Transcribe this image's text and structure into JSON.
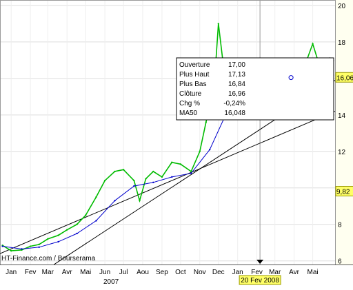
{
  "chart_data": {
    "type": "line",
    "x_range": [
      "2006-12-28",
      "2008-06-20"
    ],
    "ylim": [
      5.8,
      20.3
    ],
    "y_ticks": [
      6,
      8,
      10,
      12,
      14,
      16,
      18,
      20
    ],
    "x_month_labels": [
      {
        "date": "2007-01-15",
        "label": "Jan"
      },
      {
        "date": "2007-02-15",
        "label": "Fev"
      },
      {
        "date": "2007-03-15",
        "label": "Mar"
      },
      {
        "date": "2007-04-15",
        "label": "Avr"
      },
      {
        "date": "2007-05-15",
        "label": "Mai"
      },
      {
        "date": "2007-06-15",
        "label": "Jun"
      },
      {
        "date": "2007-07-15",
        "label": "Jul"
      },
      {
        "date": "2007-08-15",
        "label": "Aou"
      },
      {
        "date": "2007-09-15",
        "label": "Sep"
      },
      {
        "date": "2007-10-15",
        "label": "Oct"
      },
      {
        "date": "2007-11-15",
        "label": "Nov"
      },
      {
        "date": "2007-12-15",
        "label": "Dec"
      },
      {
        "date": "2008-01-15",
        "label": "Jan"
      },
      {
        "date": "2008-02-15",
        "label": "Fev"
      },
      {
        "date": "2008-03-15",
        "label": "Mar"
      },
      {
        "date": "2008-04-15",
        "label": "Avr"
      },
      {
        "date": "2008-05-15",
        "label": "Mai"
      }
    ],
    "year_labels": [
      {
        "date": "2007-06-25",
        "label": "2007"
      },
      {
        "date": "2008-03-01",
        "label": "8"
      }
    ],
    "series": [
      {
        "name": "Prix",
        "color": "#00bb00",
        "points": [
          [
            "2007-01-01",
            6.85
          ],
          [
            "2007-01-15",
            6.55
          ],
          [
            "2007-02-01",
            6.6
          ],
          [
            "2007-02-15",
            6.8
          ],
          [
            "2007-03-01",
            6.9
          ],
          [
            "2007-03-15",
            7.2
          ],
          [
            "2007-04-01",
            7.4
          ],
          [
            "2007-04-15",
            7.7
          ],
          [
            "2007-05-01",
            8.0
          ],
          [
            "2007-05-15",
            8.5
          ],
          [
            "2007-06-01",
            9.5
          ],
          [
            "2007-06-15",
            10.4
          ],
          [
            "2007-07-01",
            10.9
          ],
          [
            "2007-07-15",
            11.0
          ],
          [
            "2007-08-01",
            10.4
          ],
          [
            "2007-08-10",
            9.3
          ],
          [
            "2007-08-20",
            10.5
          ],
          [
            "2007-09-01",
            10.9
          ],
          [
            "2007-09-15",
            10.6
          ],
          [
            "2007-10-01",
            11.4
          ],
          [
            "2007-10-15",
            11.3
          ],
          [
            "2007-11-01",
            10.9
          ],
          [
            "2007-11-15",
            12.0
          ],
          [
            "2007-11-25",
            13.6
          ],
          [
            "2007-12-01",
            14.6
          ],
          [
            "2007-12-10",
            16.5
          ],
          [
            "2007-12-15",
            19.0
          ],
          [
            "2007-12-22",
            17.0
          ],
          [
            "2008-01-01",
            15.5
          ],
          [
            "2008-01-10",
            14.2
          ],
          [
            "2008-01-20",
            16.0
          ],
          [
            "2008-02-01",
            17.0
          ],
          [
            "2008-02-10",
            16.9
          ],
          [
            "2008-02-20",
            16.96
          ],
          [
            "2008-03-01",
            15.2
          ],
          [
            "2008-03-12",
            14.0
          ],
          [
            "2008-03-22",
            15.6
          ],
          [
            "2008-04-01",
            15.9
          ],
          [
            "2008-04-15",
            16.9
          ],
          [
            "2008-05-01",
            16.6
          ],
          [
            "2008-05-15",
            17.9
          ],
          [
            "2008-05-25",
            16.8
          ],
          [
            "2008-06-05",
            16.3
          ],
          [
            "2008-06-15",
            16.06
          ]
        ]
      },
      {
        "name": "MA50",
        "color": "#0000cc",
        "points": [
          [
            "2007-01-01",
            6.8
          ],
          [
            "2007-02-01",
            6.65
          ],
          [
            "2007-03-01",
            6.75
          ],
          [
            "2007-04-01",
            7.05
          ],
          [
            "2007-05-01",
            7.5
          ],
          [
            "2007-06-01",
            8.2
          ],
          [
            "2007-07-01",
            9.3
          ],
          [
            "2007-08-01",
            10.1
          ],
          [
            "2007-09-01",
            10.3
          ],
          [
            "2007-10-01",
            10.6
          ],
          [
            "2007-11-01",
            10.8
          ],
          [
            "2007-12-01",
            12.1
          ],
          [
            "2008-01-01",
            14.4
          ],
          [
            "2008-02-01",
            15.6
          ],
          [
            "2008-03-01",
            15.9
          ],
          [
            "2008-04-01",
            15.8
          ],
          [
            "2008-05-01",
            15.9
          ],
          [
            "2008-06-15",
            16.048
          ]
        ]
      }
    ],
    "trendlines": [
      {
        "points": [
          [
            "2007-03-25",
            5.8
          ],
          [
            "2008-06-20",
            15.9
          ]
        ]
      },
      {
        "points": [
          [
            "2006-12-28",
            6.4
          ],
          [
            "2008-06-20",
            14.2
          ]
        ]
      }
    ],
    "crosshair_date": "2008-02-20",
    "crosshair_date_label": "20 Fev 2008",
    "price_tags": [
      {
        "value": 16.06,
        "label": "16,06"
      },
      {
        "value": 9.82,
        "label": "9,82"
      }
    ],
    "watermark": "HT-Finance.com / Bourserama",
    "tooltip": [
      {
        "label": "Ouverture",
        "value": "17,00",
        "color": "#000000"
      },
      {
        "label": "Plus Haut",
        "value": "17,13",
        "color": "#000000"
      },
      {
        "label": "Plus Bas",
        "value": "16,84",
        "color": "#000000"
      },
      {
        "label": "Clôture",
        "value": "16,96",
        "color": "#000000"
      },
      {
        "label": "Chg %",
        "value": "-0,24%",
        "color": "#cc0000"
      },
      {
        "label": "MA50",
        "value": "16,048",
        "color": "#0000cc"
      }
    ]
  }
}
